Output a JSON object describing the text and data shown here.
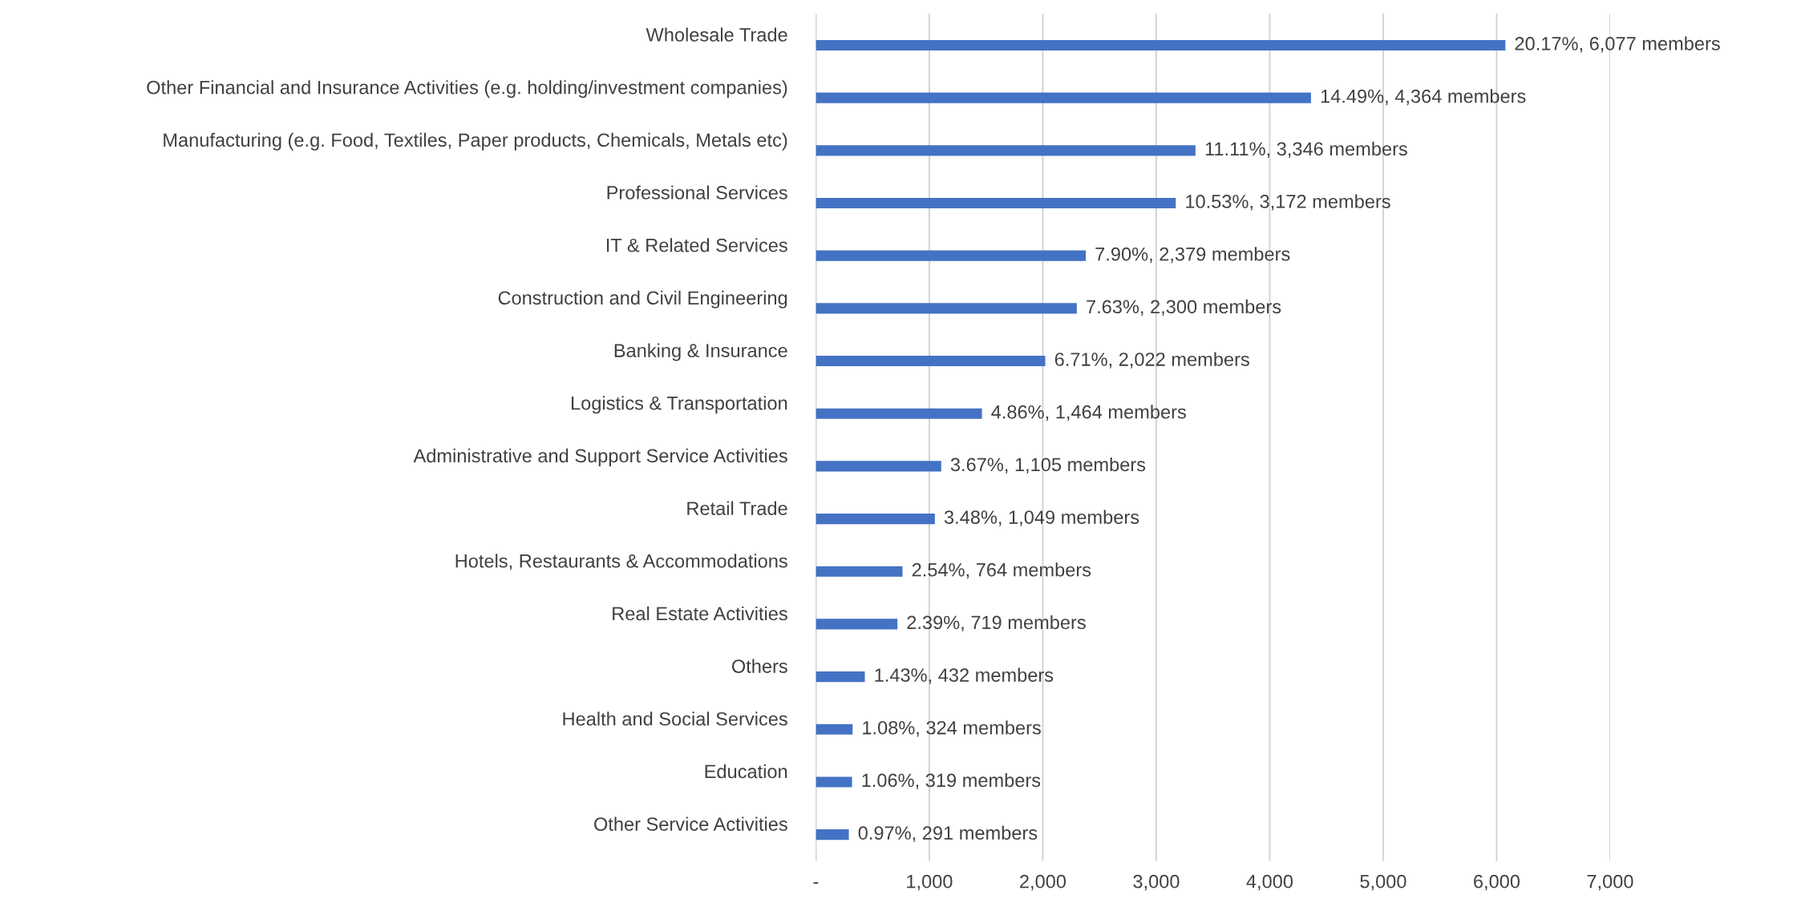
{
  "chart_data": {
    "type": "bar",
    "orientation": "horizontal",
    "categories": [
      "Wholesale Trade",
      "Other Financial and Insurance Activities (e.g. holding/investment companies)",
      "Manufacturing (e.g. Food, Textiles, Paper products, Chemicals, Metals etc)",
      "Professional Services",
      "IT & Related Services",
      "Construction and Civil Engineering",
      "Banking & Insurance",
      "Logistics & Transportation",
      "Administrative and Support Service Activities",
      "Retail Trade",
      "Hotels, Restaurants & Accommodations",
      "Real Estate Activities",
      "Others",
      "Health and Social Services",
      "Education",
      "Other Service Activities"
    ],
    "values": [
      6077,
      4364,
      3346,
      3172,
      2379,
      2300,
      2022,
      1464,
      1105,
      1049,
      764,
      719,
      432,
      324,
      319,
      291
    ],
    "value_labels": [
      "20.17%, 6,077 members",
      "14.49%, 4,364 members",
      "11.11%, 3,346 members",
      "10.53%, 3,172 members",
      "7.90%, 2,379 members",
      "7.63%, 2,300 members",
      "6.71%, 2,022 members",
      "4.86%, 1,464 members",
      "3.67%, 1,105 members",
      "3.48%, 1,049 members",
      "2.54%, 764 members",
      "2.39%, 719 members",
      "1.43%, 432 members",
      "1.08%, 324 members",
      "1.06%, 319 members",
      "0.97%, 291 members"
    ],
    "color": "#4472c4",
    "xlim": [
      0,
      7000
    ],
    "xticks": [
      {
        "value": 0,
        "label": "-"
      },
      {
        "value": 1000,
        "label": "1,000"
      },
      {
        "value": 2000,
        "label": "2,000"
      },
      {
        "value": 3000,
        "label": "3,000"
      },
      {
        "value": 4000,
        "label": "4,000"
      },
      {
        "value": 5000,
        "label": "5,000"
      },
      {
        "value": 6000,
        "label": "6,000"
      },
      {
        "value": 7000,
        "label": "7,000"
      }
    ],
    "grid": "x",
    "legend": false
  }
}
